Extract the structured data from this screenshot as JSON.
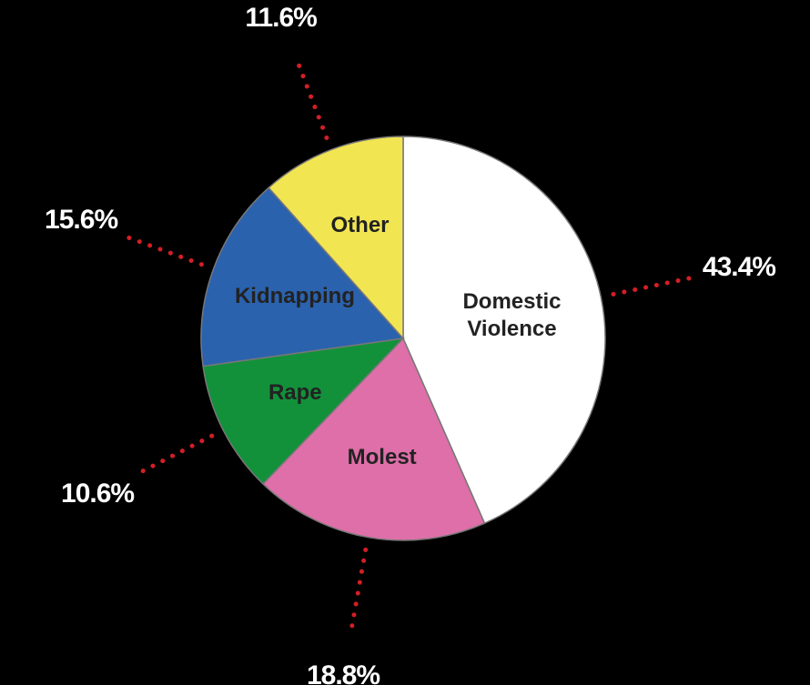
{
  "chart_data": {
    "type": "pie",
    "categories": [
      "Domestic Violence",
      "Molest",
      "Rape",
      "Kidnapping",
      "Other"
    ],
    "values": [
      43.4,
      18.8,
      10.6,
      15.6,
      11.6
    ],
    "value_labels": [
      "43.4%",
      "18.8%",
      "10.6%",
      "15.6%",
      "11.6%"
    ],
    "colors": [
      "#ffffff",
      "#de6fa8",
      "#12913a",
      "#2b62ae",
      "#f2e552"
    ]
  }
}
